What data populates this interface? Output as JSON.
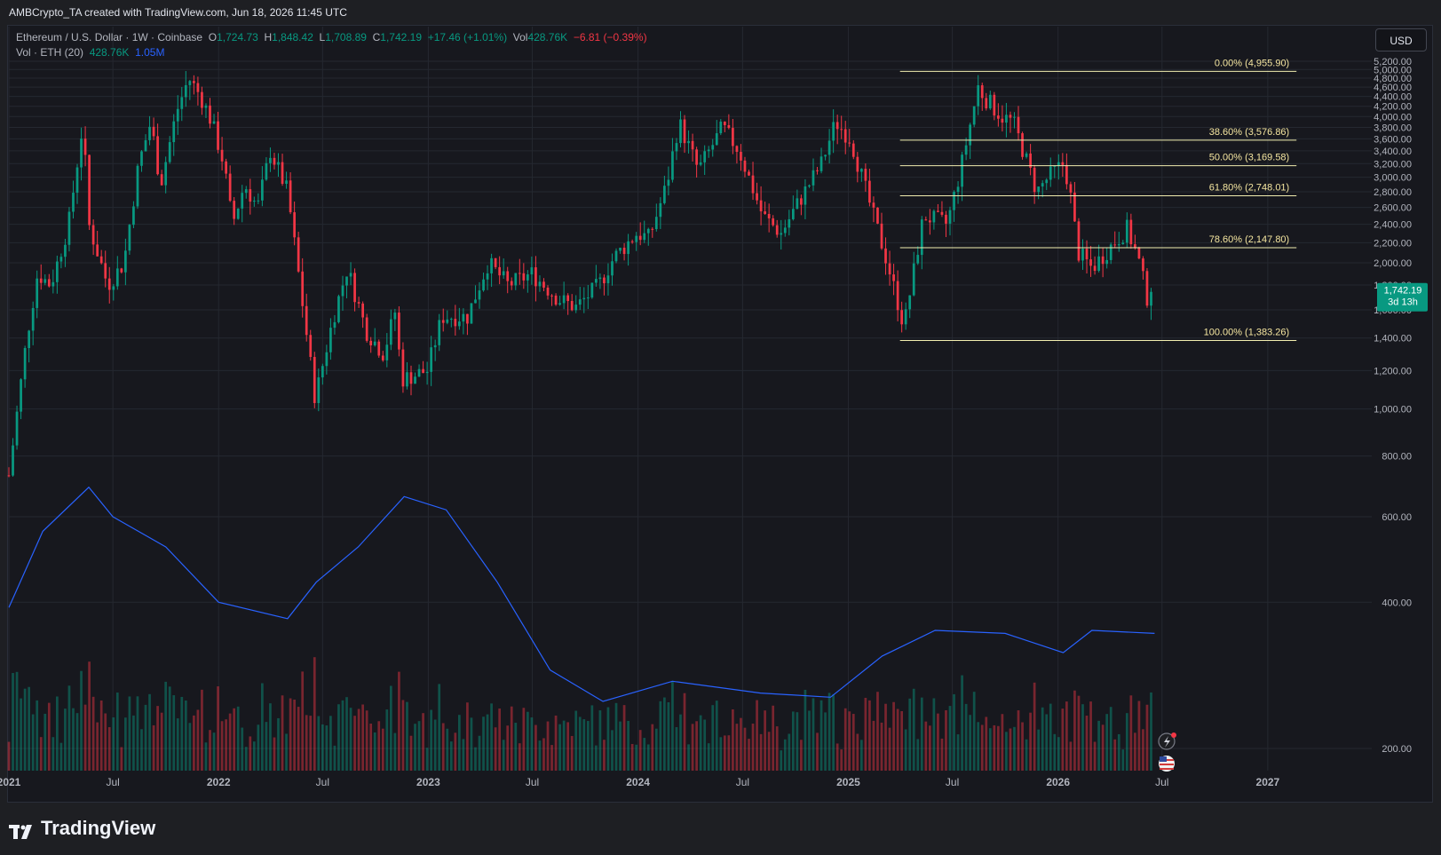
{
  "header": {
    "caption": "AMBCrypto_TA created with TradingView.com, Jun 18, 2026 11:45 UTC"
  },
  "legend": {
    "symbol": "Ethereum / U.S. Dollar · 1W · Coinbase",
    "o_label": "O",
    "o_value": "1,724.73",
    "h_label": "H",
    "h_value": "1,848.42",
    "l_label": "L",
    "l_value": "1,708.89",
    "c_label": "C",
    "c_value": "1,742.19",
    "change": "+17.46 (+1.01%)",
    "vol_label": "Vol",
    "vol_value": "428.76K",
    "vol_change": "−6.81 (−0.39%)",
    "vol_indicator_label": "Vol · ETH (20)",
    "vol_indicator_value": "428.76K",
    "vol_ma_value": "1.05M"
  },
  "currency_button": "USD",
  "last_price_label": {
    "price": "1,742.19",
    "countdown": "3d 13h"
  },
  "footer": {
    "brand": "TradingView"
  },
  "colors": {
    "up": "#089981",
    "down": "#f23645",
    "volume_ma": "#2962ff",
    "fib_line": "#f2eeb0",
    "fib_text": "#f5e6a0",
    "background": "#17181e",
    "grid": "#252830"
  },
  "icons": [
    "lightning-icon",
    "us-flag-icon",
    "tradingview-logo-icon"
  ],
  "chart_data": {
    "type": "candlestick",
    "title": "Ethereum / U.S. Dollar · 1W · Coinbase",
    "y_scale": "log",
    "ylim": [
      180,
      5400
    ],
    "y_ticks": [
      200,
      400,
      600,
      800,
      1000,
      1200,
      1400,
      1600,
      1800,
      2000,
      2200,
      2400,
      2600,
      2800,
      3000,
      3200,
      3400,
      3600,
      3800,
      4000,
      4200,
      4400,
      4600,
      4800,
      5000,
      5200
    ],
    "y_tick_labels": [
      "200.00",
      "400.00",
      "600.00",
      "800.00",
      "1,000.00",
      "1,200.00",
      "1,400.00",
      "1,600.00",
      "1,800.00",
      "2,000.00",
      "2,200.00",
      "2,400.00",
      "2,600.00",
      "2,800.00",
      "3,000.00",
      "3,200.00",
      "3,400.00",
      "3,600.00",
      "3,800.00",
      "4,000.00",
      "4,200.00",
      "4,400.00",
      "4,600.00",
      "4,800.00",
      "5,000.00",
      "5,200.00"
    ],
    "x_range": [
      "2021-01-01",
      "2027-07-01"
    ],
    "x_ticks": [
      {
        "date": "2021-01-01",
        "label": "2021"
      },
      {
        "date": "2021-07-01",
        "label": "Jul"
      },
      {
        "date": "2022-01-01",
        "label": "2022"
      },
      {
        "date": "2022-07-01",
        "label": "Jul"
      },
      {
        "date": "2023-01-01",
        "label": "2023"
      },
      {
        "date": "2023-07-01",
        "label": "Jul"
      },
      {
        "date": "2024-01-01",
        "label": "2024"
      },
      {
        "date": "2024-07-01",
        "label": "Jul"
      },
      {
        "date": "2025-01-01",
        "label": "2025"
      },
      {
        "date": "2025-07-01",
        "label": "Jul"
      },
      {
        "date": "2026-01-01",
        "label": "2026"
      },
      {
        "date": "2026-07-01",
        "label": "Jul"
      },
      {
        "date": "2027-01-01",
        "label": "2027"
      }
    ],
    "price_series": [
      {
        "date": "2021-01-01",
        "close": 730
      },
      {
        "date": "2021-02-01",
        "close": 1400
      },
      {
        "date": "2021-02-20",
        "close": 1900
      },
      {
        "date": "2021-03-15",
        "close": 1800
      },
      {
        "date": "2021-04-15",
        "close": 2400
      },
      {
        "date": "2021-05-10",
        "close": 3900
      },
      {
        "date": "2021-05-20",
        "close": 2400
      },
      {
        "date": "2021-06-22",
        "close": 1800
      },
      {
        "date": "2021-07-20",
        "close": 2000
      },
      {
        "date": "2021-08-15",
        "close": 3200
      },
      {
        "date": "2021-09-05",
        "close": 3900
      },
      {
        "date": "2021-09-22",
        "close": 2900
      },
      {
        "date": "2021-10-20",
        "close": 4100
      },
      {
        "date": "2021-11-10",
        "close": 4800
      },
      {
        "date": "2021-12-01",
        "close": 4400
      },
      {
        "date": "2021-12-20",
        "close": 3900
      },
      {
        "date": "2022-01-10",
        "close": 3200
      },
      {
        "date": "2022-01-25",
        "close": 2400
      },
      {
        "date": "2022-02-15",
        "close": 2900
      },
      {
        "date": "2022-03-10",
        "close": 2600
      },
      {
        "date": "2022-04-01",
        "close": 3400
      },
      {
        "date": "2022-05-01",
        "close": 2800
      },
      {
        "date": "2022-05-20",
        "close": 1900
      },
      {
        "date": "2022-06-18",
        "close": 1050
      },
      {
        "date": "2022-07-20",
        "close": 1550
      },
      {
        "date": "2022-08-13",
        "close": 1950
      },
      {
        "date": "2022-09-15",
        "close": 1450
      },
      {
        "date": "2022-10-15",
        "close": 1300
      },
      {
        "date": "2022-11-05",
        "close": 1600
      },
      {
        "date": "2022-11-15",
        "close": 1150
      },
      {
        "date": "2022-12-30",
        "close": 1200
      },
      {
        "date": "2023-01-25",
        "close": 1550
      },
      {
        "date": "2023-03-10",
        "close": 1550
      },
      {
        "date": "2023-04-15",
        "close": 2000
      },
      {
        "date": "2023-05-20",
        "close": 1800
      },
      {
        "date": "2023-06-30",
        "close": 1900
      },
      {
        "date": "2023-08-17",
        "close": 1680
      },
      {
        "date": "2023-09-15",
        "close": 1620
      },
      {
        "date": "2023-10-25",
        "close": 1800
      },
      {
        "date": "2023-11-20",
        "close": 2050
      },
      {
        "date": "2023-12-30",
        "close": 2300
      },
      {
        "date": "2024-01-20",
        "close": 2250
      },
      {
        "date": "2024-02-20",
        "close": 2900
      },
      {
        "date": "2024-03-12",
        "close": 3900
      },
      {
        "date": "2024-04-15",
        "close": 3100
      },
      {
        "date": "2024-05-27",
        "close": 3800
      },
      {
        "date": "2024-06-25",
        "close": 3400
      },
      {
        "date": "2024-08-05",
        "close": 2500
      },
      {
        "date": "2024-09-06",
        "close": 2300
      },
      {
        "date": "2024-10-01",
        "close": 2600
      },
      {
        "date": "2024-11-15",
        "close": 3200
      },
      {
        "date": "2024-12-10",
        "close": 3900
      },
      {
        "date": "2025-01-05",
        "close": 3600
      },
      {
        "date": "2025-02-05",
        "close": 2700
      },
      {
        "date": "2025-03-10",
        "close": 2000
      },
      {
        "date": "2025-04-08",
        "close": 1480
      },
      {
        "date": "2025-05-12",
        "close": 2500
      },
      {
        "date": "2025-06-22",
        "close": 2400
      },
      {
        "date": "2025-07-15",
        "close": 3100
      },
      {
        "date": "2025-08-15",
        "close": 4600
      },
      {
        "date": "2025-08-25",
        "close": 4400
      },
      {
        "date": "2025-09-25",
        "close": 4000
      },
      {
        "date": "2025-10-15",
        "close": 3900
      },
      {
        "date": "2025-11-05",
        "close": 3300
      },
      {
        "date": "2025-11-25",
        "close": 2800
      },
      {
        "date": "2025-12-15",
        "close": 3000
      },
      {
        "date": "2026-01-10",
        "close": 3200
      },
      {
        "date": "2026-01-20",
        "close": 2900
      },
      {
        "date": "2026-02-05",
        "close": 2100
      },
      {
        "date": "2026-03-01",
        "close": 1950
      },
      {
        "date": "2026-04-01",
        "close": 2150
      },
      {
        "date": "2026-05-01",
        "close": 2350
      },
      {
        "date": "2026-05-20",
        "close": 2050
      },
      {
        "date": "2026-06-05",
        "close": 1700
      },
      {
        "date": "2026-06-18",
        "close": 1742
      }
    ],
    "fibonacci_levels": [
      {
        "label": "0.00% (4,955.90)",
        "price": 4955.9
      },
      {
        "label": "38.60% (3,576.86)",
        "price": 3576.86
      },
      {
        "label": "50.00% (3,169.58)",
        "price": 3169.58
      },
      {
        "label": "61.80% (2,748.01)",
        "price": 2748.01
      },
      {
        "label": "78.60% (2,147.80)",
        "price": 2147.8
      },
      {
        "label": "100.00% (1,383.26)",
        "price": 1383.26
      }
    ],
    "fibonacci_range": {
      "start": "2025-04-01",
      "end": "2027-02-20"
    },
    "last_price": 1742.19,
    "volume_ma": [
      {
        "date": "2021-01-01",
        "value": 390
      },
      {
        "date": "2021-03-01",
        "value": 560
      },
      {
        "date": "2021-05-20",
        "value": 690
      },
      {
        "date": "2021-07-01",
        "value": 600
      },
      {
        "date": "2021-10-01",
        "value": 520
      },
      {
        "date": "2022-01-01",
        "value": 400
      },
      {
        "date": "2022-05-01",
        "value": 370
      },
      {
        "date": "2022-06-20",
        "value": 440
      },
      {
        "date": "2022-09-01",
        "value": 520
      },
      {
        "date": "2022-11-20",
        "value": 660
      },
      {
        "date": "2023-02-01",
        "value": 620
      },
      {
        "date": "2023-05-01",
        "value": 440
      },
      {
        "date": "2023-08-01",
        "value": 290
      },
      {
        "date": "2023-11-01",
        "value": 250
      },
      {
        "date": "2024-03-01",
        "value": 275
      },
      {
        "date": "2024-08-01",
        "value": 260
      },
      {
        "date": "2024-12-01",
        "value": 255
      },
      {
        "date": "2025-03-01",
        "value": 310
      },
      {
        "date": "2025-06-01",
        "value": 350
      },
      {
        "date": "2025-10-01",
        "value": 345
      },
      {
        "date": "2026-01-10",
        "value": 315
      },
      {
        "date": "2026-03-01",
        "value": 350
      },
      {
        "date": "2026-06-18",
        "value": 345
      }
    ]
  }
}
